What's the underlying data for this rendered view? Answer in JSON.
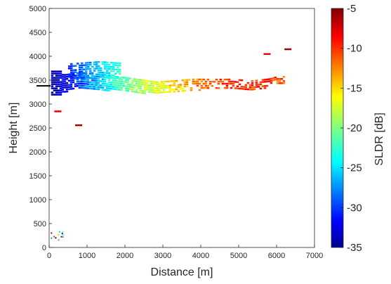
{
  "chart_data": {
    "type": "heatmap",
    "xlabel": "Distance [m]",
    "ylabel": "Height [m]",
    "xlim": [
      0,
      7000
    ],
    "ylim": [
      0,
      5000
    ],
    "xticks": [
      "0",
      "1000",
      "2000",
      "3000",
      "4000",
      "5000",
      "6000",
      "7000"
    ],
    "yticks": [
      "0",
      "500",
      "1000",
      "1500",
      "2000",
      "2500",
      "3000",
      "3500",
      "4000",
      "4500",
      "5000"
    ],
    "colorbar": {
      "label": "SLDR [dB]",
      "range": [
        -35,
        -5
      ],
      "ticks": [
        "-35",
        "-30",
        "-25",
        "-20",
        "-15",
        "-10",
        "-5"
      ],
      "colormap": "jet"
    },
    "reference_height_marker": 3380,
    "cloud": {
      "description_points": [
        {
          "x": 50,
          "y": 3450,
          "sldr": -34
        },
        {
          "x": 400,
          "y": 3450,
          "sldr": -32
        },
        {
          "x": 800,
          "y": 3500,
          "sldr": -29
        },
        {
          "x": 1200,
          "y": 3480,
          "sldr": -26
        },
        {
          "x": 1600,
          "y": 3450,
          "sldr": -23
        },
        {
          "x": 2000,
          "y": 3420,
          "sldr": -21
        },
        {
          "x": 2400,
          "y": 3380,
          "sldr": -19
        },
        {
          "x": 2800,
          "y": 3350,
          "sldr": -17
        },
        {
          "x": 3300,
          "y": 3380,
          "sldr": -15
        },
        {
          "x": 3800,
          "y": 3420,
          "sldr": -13
        },
        {
          "x": 4300,
          "y": 3420,
          "sldr": -11
        },
        {
          "x": 4800,
          "y": 3430,
          "sldr": -10
        },
        {
          "x": 5300,
          "y": 3400,
          "sldr": -10
        },
        {
          "x": 5800,
          "y": 3450,
          "sldr": -10
        },
        {
          "x": 6000,
          "y": 3500,
          "sldr": -11
        }
      ],
      "upper_patch": {
        "x_range": [
          500,
          1850
        ],
        "y_range": [
          3550,
          3900
        ],
        "sldr_range": [
          -30,
          -22
        ]
      },
      "isolated_echoes": [
        {
          "x": 5750,
          "y": 4050,
          "sldr": -8
        },
        {
          "x": 6300,
          "y": 4150,
          "sldr": -6
        },
        {
          "x": 780,
          "y": 2560,
          "sldr": -6
        },
        {
          "x": 230,
          "y": 2850,
          "sldr": -8
        }
      ],
      "surface_clutter": {
        "x_range": [
          0,
          350
        ],
        "y_range": [
          150,
          350
        ]
      }
    }
  }
}
